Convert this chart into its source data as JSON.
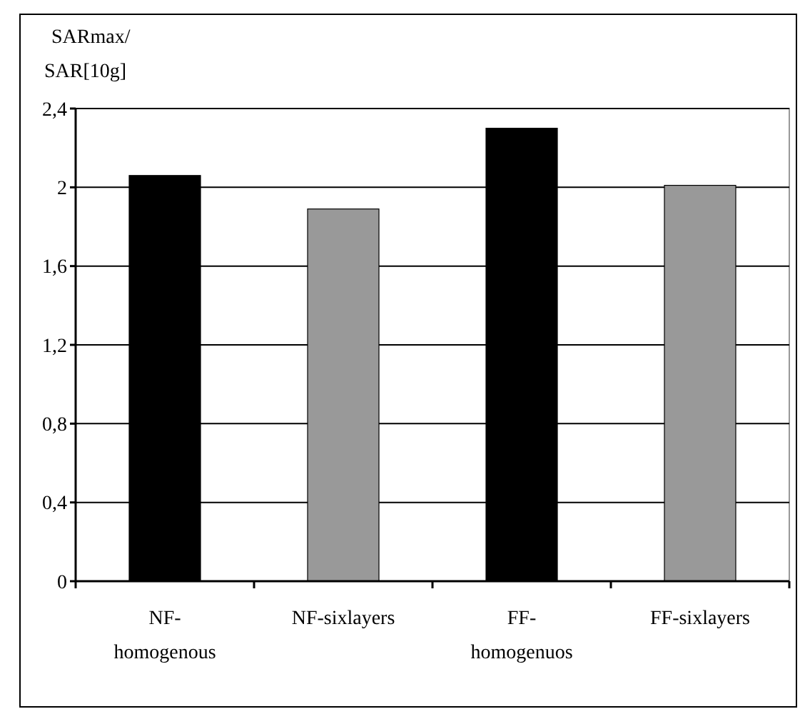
{
  "chart_data": {
    "type": "bar",
    "ylabel": "SARmax/SAR[10g]",
    "categories": [
      "NF-homogenous",
      "NF-sixlayers",
      "FF-homogenuos",
      "FF-sixlayers"
    ],
    "values": [
      2.06,
      1.89,
      2.3,
      2.01
    ],
    "colors": [
      "#000000",
      "#999999",
      "#000000",
      "#999999"
    ],
    "ylim": [
      0,
      2.4
    ],
    "yticks": [
      {
        "value": 0,
        "label": "0"
      },
      {
        "value": 0.4,
        "label": "0,4"
      },
      {
        "value": 0.8,
        "label": "0,8"
      },
      {
        "value": 1.2,
        "label": "1,2"
      },
      {
        "value": 1.6,
        "label": "1,6"
      },
      {
        "value": 2,
        "label": "2"
      },
      {
        "value": 2.4,
        "label": "2,4"
      }
    ],
    "grid": "y"
  }
}
